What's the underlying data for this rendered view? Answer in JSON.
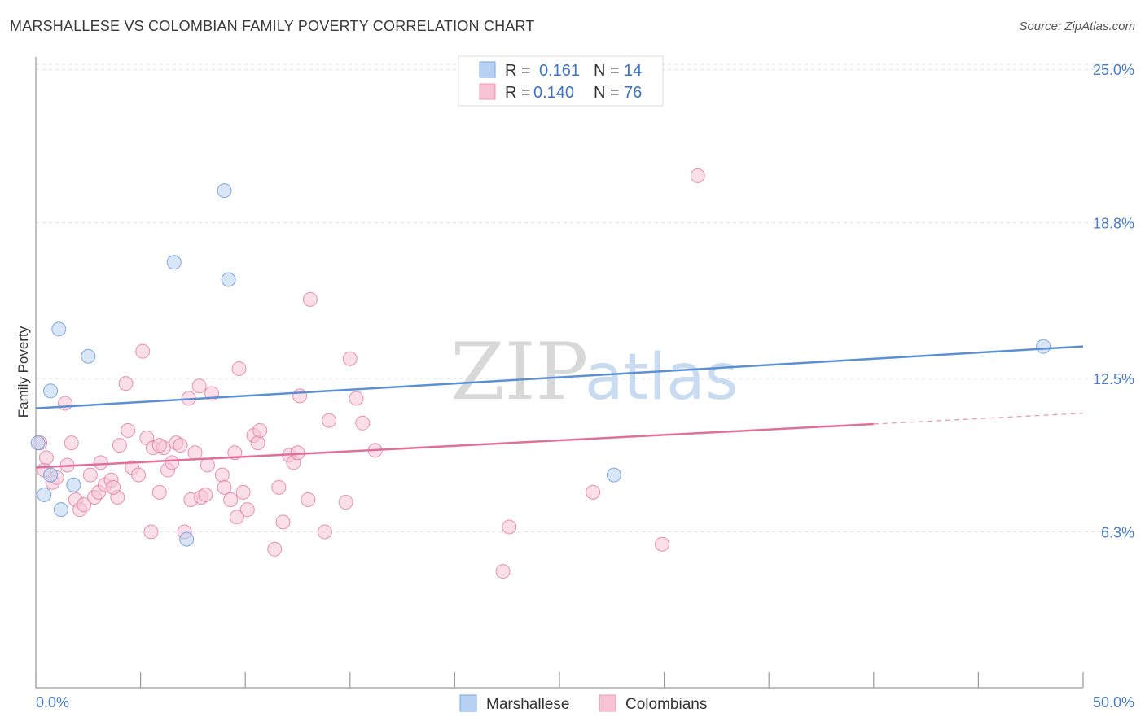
{
  "title": "MARSHALLESE VS COLOMBIAN FAMILY POVERTY CORRELATION CHART",
  "source": "Source: ZipAtlas.com",
  "chart_data": {
    "type": "scatter",
    "xlabel": "",
    "ylabel": "Family Poverty",
    "xlim": [
      0,
      50
    ],
    "ylim": [
      0,
      25.5
    ],
    "x_tick_labels": [
      "0.0%",
      "50.0%"
    ],
    "y_ticks": [
      6.3,
      12.5,
      18.8,
      25.0
    ],
    "y_tick_labels": [
      "6.3%",
      "12.5%",
      "18.8%",
      "25.0%"
    ],
    "watermark": [
      "ZIP",
      "atlas"
    ],
    "legend": {
      "rows": [
        {
          "r_label": "R =",
          "r_value": "0.161",
          "n_label": "N =",
          "n_value": "14"
        },
        {
          "r_label": "R =",
          "r_value": "0.140",
          "n_label": "N =",
          "n_value": "76"
        }
      ]
    },
    "series": [
      {
        "name": "Marshallese",
        "color": "#5b8fd6",
        "fill": "#b8d1f2",
        "trend": {
          "x": [
            0,
            50
          ],
          "y": [
            11.3,
            13.8
          ],
          "solid_to": 50
        },
        "points": [
          [
            0.1,
            9.9
          ],
          [
            0.4,
            7.8
          ],
          [
            0.7,
            12.0
          ],
          [
            1.1,
            14.5
          ],
          [
            1.2,
            7.2
          ],
          [
            1.8,
            8.2
          ],
          [
            2.5,
            13.4
          ],
          [
            6.6,
            17.2
          ],
          [
            7.2,
            6.0
          ],
          [
            9.0,
            20.1
          ],
          [
            9.2,
            16.5
          ],
          [
            27.6,
            8.6
          ],
          [
            48.1,
            13.8
          ],
          [
            0.7,
            8.6
          ]
        ]
      },
      {
        "name": "Colombians",
        "color": "#e0709a",
        "fill": "#f7c4d5",
        "trend": {
          "x": [
            0,
            50
          ],
          "y": [
            8.9,
            11.1
          ],
          "solid_to": 40
        },
        "points": [
          [
            0.2,
            9.9
          ],
          [
            0.4,
            8.8
          ],
          [
            0.5,
            9.3
          ],
          [
            0.8,
            8.3
          ],
          [
            1.0,
            8.5
          ],
          [
            1.4,
            11.5
          ],
          [
            1.5,
            9.0
          ],
          [
            1.7,
            9.9
          ],
          [
            1.9,
            7.6
          ],
          [
            2.1,
            7.2
          ],
          [
            2.3,
            7.4
          ],
          [
            2.6,
            8.6
          ],
          [
            2.8,
            7.7
          ],
          [
            3.0,
            7.9
          ],
          [
            3.1,
            9.1
          ],
          [
            3.3,
            8.2
          ],
          [
            3.6,
            8.4
          ],
          [
            3.9,
            7.7
          ],
          [
            4.0,
            9.8
          ],
          [
            4.3,
            12.3
          ],
          [
            4.4,
            10.4
          ],
          [
            4.6,
            8.9
          ],
          [
            4.9,
            8.6
          ],
          [
            5.1,
            13.6
          ],
          [
            5.3,
            10.1
          ],
          [
            5.5,
            6.3
          ],
          [
            5.6,
            9.7
          ],
          [
            5.9,
            7.9
          ],
          [
            6.1,
            9.7
          ],
          [
            6.3,
            8.8
          ],
          [
            6.5,
            9.1
          ],
          [
            6.7,
            9.9
          ],
          [
            6.9,
            9.8
          ],
          [
            7.1,
            6.3
          ],
          [
            7.3,
            11.7
          ],
          [
            7.4,
            7.6
          ],
          [
            7.6,
            9.5
          ],
          [
            7.8,
            12.2
          ],
          [
            7.9,
            7.7
          ],
          [
            8.2,
            9.0
          ],
          [
            8.4,
            11.9
          ],
          [
            8.9,
            8.6
          ],
          [
            9.0,
            8.1
          ],
          [
            9.3,
            7.6
          ],
          [
            9.5,
            9.5
          ],
          [
            9.7,
            12.9
          ],
          [
            9.9,
            7.9
          ],
          [
            10.1,
            7.2
          ],
          [
            10.4,
            10.2
          ],
          [
            10.6,
            9.9
          ],
          [
            10.7,
            10.4
          ],
          [
            11.4,
            5.6
          ],
          [
            11.6,
            8.1
          ],
          [
            11.8,
            6.7
          ],
          [
            12.1,
            9.4
          ],
          [
            12.3,
            9.1
          ],
          [
            12.5,
            9.5
          ],
          [
            12.6,
            11.8
          ],
          [
            13.0,
            7.6
          ],
          [
            13.1,
            15.7
          ],
          [
            13.8,
            6.3
          ],
          [
            14.0,
            10.8
          ],
          [
            14.8,
            7.5
          ],
          [
            15.0,
            13.3
          ],
          [
            15.3,
            11.7
          ],
          [
            15.6,
            10.7
          ],
          [
            16.2,
            9.6
          ],
          [
            22.3,
            4.7
          ],
          [
            22.6,
            6.5
          ],
          [
            26.6,
            7.9
          ],
          [
            29.9,
            5.8
          ],
          [
            31.6,
            20.7
          ],
          [
            8.1,
            7.8
          ],
          [
            5.9,
            9.8
          ],
          [
            3.7,
            8.1
          ],
          [
            9.6,
            6.9
          ]
        ]
      }
    ],
    "bottom_legend": [
      "Marshallese",
      "Colombians"
    ]
  }
}
